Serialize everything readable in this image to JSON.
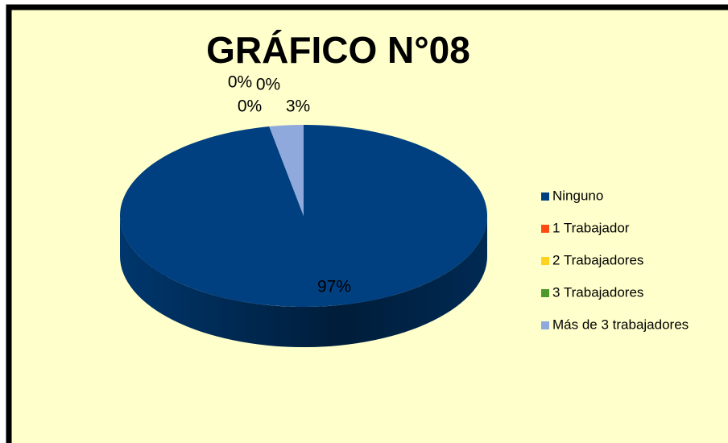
{
  "chart_data": {
    "type": "pie",
    "title": "GRÁFICO N°08",
    "categories": [
      "Ninguno",
      "1 Trabajador",
      "2 Trabajadores",
      "3 Trabajadores",
      "Más de 3 trabajadores"
    ],
    "values": [
      97,
      0,
      0,
      0,
      3
    ],
    "value_labels": [
      "97%",
      "0%",
      "0%",
      "0%",
      "3%"
    ],
    "colors": [
      "#004080",
      "#ff4b12",
      "#ffd21f",
      "#4c9a2a",
      "#8fa9dd"
    ],
    "legend": "right"
  }
}
